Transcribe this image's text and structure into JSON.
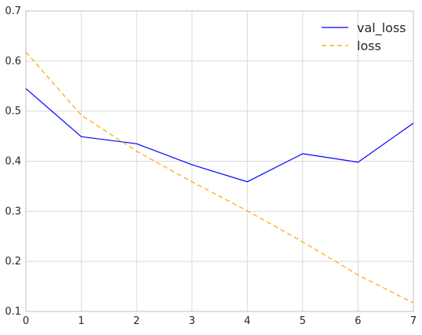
{
  "chart_data": {
    "type": "line",
    "title": "",
    "xlabel": "",
    "ylabel": "",
    "x": [
      0,
      1,
      2,
      3,
      4,
      5,
      6,
      7
    ],
    "xlim": [
      0,
      7
    ],
    "ylim": [
      0.1,
      0.7
    ],
    "xticks": [
      0,
      1,
      2,
      3,
      4,
      5,
      6,
      7
    ],
    "yticks": [
      0.1,
      0.2,
      0.3,
      0.4,
      0.5,
      0.6,
      0.7
    ],
    "grid": true,
    "legend_position": "top-right",
    "series": [
      {
        "name": "val_loss",
        "color": "#0000ff",
        "style": "solid",
        "values": [
          0.545,
          0.449,
          0.435,
          0.393,
          0.359,
          0.415,
          0.398,
          0.476
        ]
      },
      {
        "name": "loss",
        "color": "#ffa500",
        "style": "dashed",
        "values": [
          0.618,
          0.492,
          0.42,
          0.359,
          0.301,
          0.239,
          0.173,
          0.117
        ]
      }
    ]
  }
}
